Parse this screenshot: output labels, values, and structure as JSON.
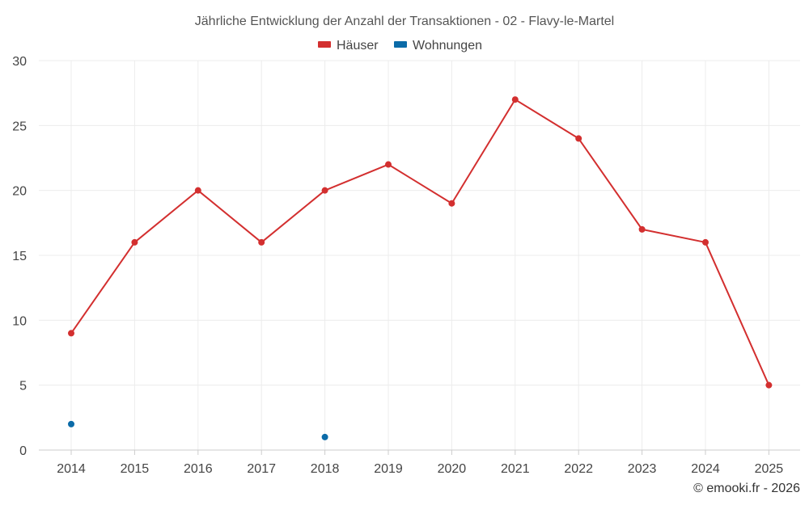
{
  "chart_data": {
    "type": "line",
    "title": "Jährliche Entwicklung der Anzahl der Transaktionen - 02 - Flavy-le-Martel",
    "categories": [
      "2014",
      "2015",
      "2016",
      "2017",
      "2018",
      "2019",
      "2020",
      "2021",
      "2022",
      "2023",
      "2024",
      "2025"
    ],
    "series": [
      {
        "name": "Häuser",
        "color": "#d32f2f",
        "values": [
          9,
          16,
          20,
          16,
          20,
          22,
          19,
          27,
          24,
          17,
          16,
          5
        ]
      },
      {
        "name": "Wohnungen",
        "color": "#0b6ba8",
        "values": [
          2,
          null,
          null,
          null,
          1,
          null,
          null,
          null,
          null,
          null,
          null,
          null
        ]
      }
    ],
    "ylim": [
      0,
      30
    ],
    "yticks": [
      "0",
      "5",
      "10",
      "15",
      "20",
      "25",
      "30"
    ],
    "legend_position": "top-center",
    "grid": true
  },
  "credit": "© emooki.fr - 2026"
}
